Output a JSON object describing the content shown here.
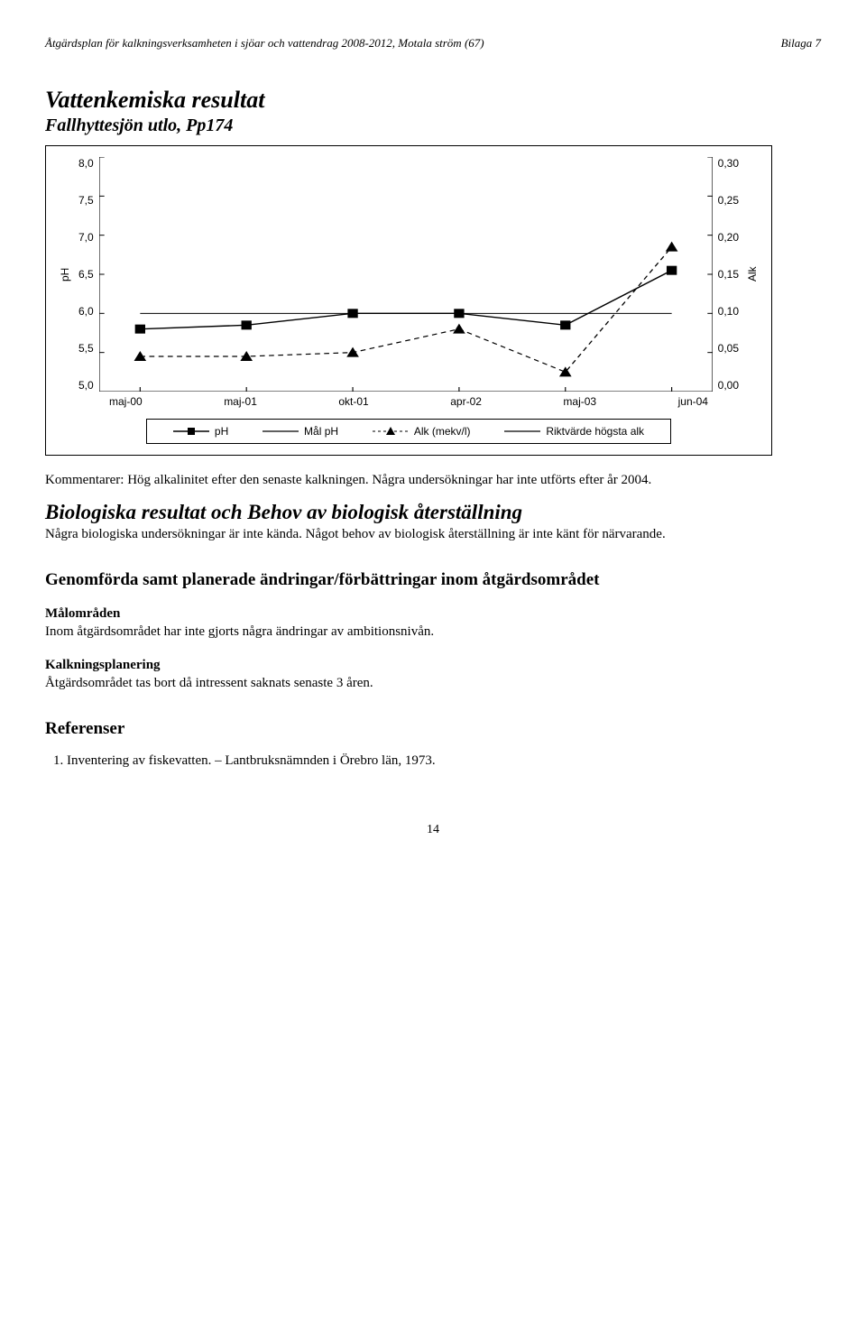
{
  "header": {
    "left": "Åtgärdsplan för kalkningsverksamheten i sjöar och vattendrag 2008-2012, Motala ström (67)",
    "right": "Bilaga 7"
  },
  "section1": {
    "title": "Vattenkemiska resultat",
    "subtitle": "Fallhyttesjön utlo, Pp174"
  },
  "chart": {
    "type": "line",
    "y_left": {
      "label": "pH",
      "min": 5.0,
      "max": 8.0,
      "step": 0.5,
      "ticks": [
        "8,0",
        "7,5",
        "7,0",
        "6,5",
        "6,0",
        "5,5",
        "5,0"
      ]
    },
    "y_right": {
      "label": "Alk",
      "min": 0.0,
      "max": 0.3,
      "step": 0.05,
      "ticks": [
        "0,30",
        "0,25",
        "0,20",
        "0,15",
        "0,10",
        "0,05",
        "0,00"
      ]
    },
    "x_categories": [
      "maj-00",
      "maj-01",
      "okt-01",
      "apr-02",
      "maj-03",
      "jun-04"
    ],
    "series": {
      "ph": {
        "label": "pH",
        "marker": "square",
        "color": "#000000",
        "line_style": "solid",
        "line_width": 1.2,
        "values": [
          5.8,
          5.85,
          6.0,
          6.0,
          5.85,
          6.55
        ]
      },
      "mal_ph": {
        "label": "Mål pH",
        "marker": "none",
        "color": "#000000",
        "line_style": "solid",
        "line_width": 0.9,
        "values": [
          6.0,
          6.0,
          6.0,
          6.0,
          6.0,
          6.0
        ]
      },
      "alk": {
        "label": "Alk (mekv/l)",
        "marker": "triangle",
        "color": "#000000",
        "line_style": "dashed",
        "line_width": 1.0,
        "axis": "right",
        "values": [
          0.045,
          0.045,
          0.05,
          0.08,
          0.025,
          0.185
        ]
      },
      "riktvarde": {
        "label": "Riktvärde högsta alk",
        "marker": "none",
        "color": "#000000",
        "line_style": "solid",
        "line_width": 0.9,
        "axis": "right",
        "values": null
      }
    },
    "background_color": "#ffffff",
    "axis_color": "#000000",
    "font_family": "Arial",
    "tick_fontsize": 12
  },
  "comment1": "Kommentarer: Hög alkalinitet efter den senaste kalkningen. Några undersökningar har inte utförts efter år 2004.",
  "section2": {
    "title": "Biologiska resultat och Behov av biologisk återställning",
    "body": "Några biologiska undersökningar är inte kända. Något behov av biologisk återställning är inte känt för närvarande."
  },
  "section3": {
    "title": "Genomförda samt planerade ändringar/förbättringar inom åtgärdsområdet",
    "sub1_title": "Målområden",
    "sub1_body": "Inom åtgärdsområdet har inte gjorts några ändringar av ambitionsnivån.",
    "sub2_title": "Kalkningsplanering",
    "sub2_body": "Åtgärdsområdet tas bort då intressent saknats senaste 3 åren."
  },
  "refs": {
    "title": "Referenser",
    "items": [
      "Inventering av fiskevatten. – Lantbruksnämnden i Örebro län, 1973."
    ]
  },
  "pagenum": "14"
}
